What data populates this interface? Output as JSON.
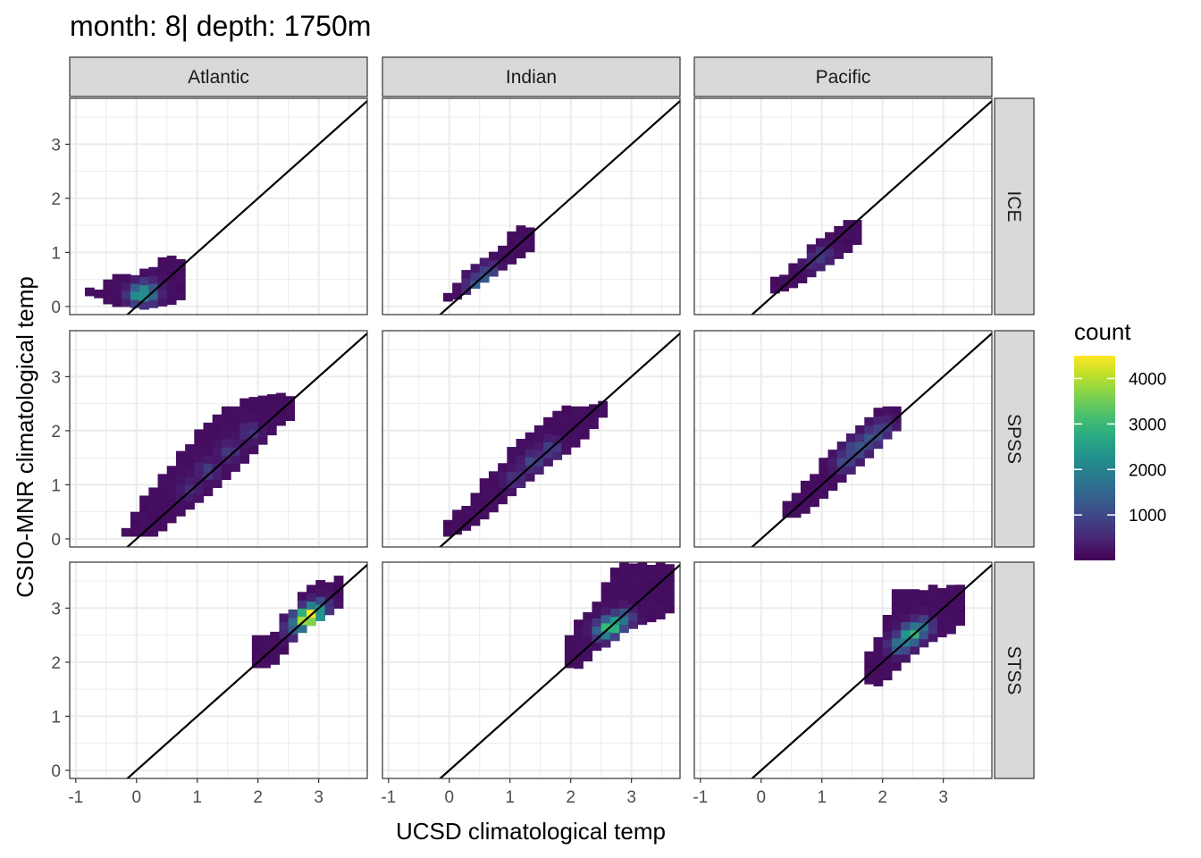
{
  "title": "month: 8| depth: 1750m",
  "chart_data": {
    "type": "heatmap",
    "title": "month: 8| depth: 1750m",
    "xlabel": "UCSD climatological temp",
    "ylabel": "CSIO-MNR climatological temp",
    "xlim": [
      -1.1,
      3.8
    ],
    "ylim": [
      -0.15,
      3.85
    ],
    "xticks": [
      "-1",
      "0",
      "1",
      "2",
      "3"
    ],
    "yticks": [
      "0",
      "1",
      "2",
      "3"
    ],
    "xtick_values": [
      -1,
      0,
      1,
      2,
      3
    ],
    "ytick_values": [
      0,
      1,
      2,
      3
    ],
    "columns": [
      "Atlantic",
      "Indian",
      "Pacific"
    ],
    "rows": [
      "ICE",
      "SPSS",
      "STSS"
    ],
    "reference_line": "y = x",
    "bin_width": 0.15,
    "legend": {
      "title": "count",
      "ticks": [
        "1000",
        "2000",
        "3000",
        "4000"
      ],
      "tick_values": [
        1000,
        2000,
        3000,
        4000
      ],
      "min": 1,
      "max": 4500,
      "colormap": "viridis",
      "position": "right"
    },
    "grid": true,
    "panels": [
      {
        "row": "ICE",
        "col": "Atlantic",
        "bands": [
          [
            -0.85,
            0.3,
            0.2,
            0.2
          ],
          [
            -0.65,
            0.4,
            0.15,
            0.3
          ],
          [
            -0.55,
            0.5,
            0.05,
            0.4
          ],
          [
            -0.4,
            0.5,
            0.0,
            0.55
          ],
          [
            -0.2,
            0.55,
            0.0,
            0.55
          ],
          [
            0.05,
            0.6,
            -0.05,
            0.55
          ],
          [
            0.3,
            0.7,
            0.0,
            0.8
          ],
          [
            0.55,
            0.8,
            0.05,
            0.8
          ],
          [
            0.75,
            0.8,
            0.2,
            0.8
          ]
        ],
        "peaks": [
          {
            "x": -0.05,
            "y": 0.15,
            "c": 2100
          },
          {
            "x": 0.15,
            "y": 0.15,
            "c": 1100
          },
          {
            "x": 0.1,
            "y": 0.3,
            "c": 600
          }
        ]
      },
      {
        "row": "ICE",
        "col": "Indian",
        "bands": [
          [
            -0.1,
            0.1,
            0.1,
            0.2
          ],
          [
            0.1,
            0.15,
            0.25,
            0.45
          ],
          [
            0.3,
            0.3,
            0.4,
            0.6
          ],
          [
            0.5,
            0.45,
            0.6,
            0.8
          ],
          [
            0.7,
            0.6,
            0.75,
            1.0
          ],
          [
            0.9,
            0.75,
            0.95,
            1.2
          ],
          [
            1.1,
            0.9,
            1.1,
            1.4
          ],
          [
            1.3,
            1.05,
            1.25,
            1.4
          ]
        ],
        "peaks": [
          {
            "x": 0.35,
            "y": 0.3,
            "c": 950
          },
          {
            "x": 0.5,
            "y": 0.45,
            "c": 700
          },
          {
            "x": 0.6,
            "y": 0.6,
            "c": 500
          }
        ]
      },
      {
        "row": "ICE",
        "col": "Pacific",
        "bands": [
          [
            0.15,
            0.25,
            0.3,
            0.45
          ],
          [
            0.35,
            0.3,
            0.5,
            0.6
          ],
          [
            0.55,
            0.4,
            0.7,
            0.8
          ],
          [
            0.75,
            0.55,
            0.9,
            1.0
          ],
          [
            0.95,
            0.7,
            1.1,
            1.2
          ],
          [
            1.15,
            0.85,
            1.25,
            1.4
          ],
          [
            1.35,
            1.0,
            1.4,
            1.55
          ],
          [
            1.5,
            1.15,
            1.5,
            1.55
          ]
        ],
        "peaks": [
          {
            "x": 0.95,
            "y": 0.9,
            "c": 450
          },
          {
            "x": 0.8,
            "y": 0.75,
            "c": 350
          }
        ]
      },
      {
        "row": "SPSS",
        "col": "Atlantic",
        "bands": [
          [
            -0.25,
            0.05,
            0.1,
            0.15
          ],
          [
            -0.05,
            0.05,
            0.3,
            0.55
          ],
          [
            0.25,
            0.05,
            0.6,
            1.0
          ],
          [
            0.5,
            0.3,
            0.9,
            1.3
          ],
          [
            0.8,
            0.55,
            1.2,
            1.7
          ],
          [
            1.1,
            0.8,
            1.5,
            2.1
          ],
          [
            1.4,
            1.1,
            1.8,
            2.3
          ],
          [
            1.7,
            1.4,
            2.0,
            2.45
          ],
          [
            2.0,
            1.75,
            2.25,
            2.55
          ],
          [
            2.3,
            2.1,
            2.4,
            2.6
          ],
          [
            2.55,
            2.25,
            2.5,
            2.55
          ]
        ],
        "peaks": [
          {
            "x": 1.1,
            "y": 1.2,
            "c": 600
          },
          {
            "x": 1.45,
            "y": 1.55,
            "c": 550
          },
          {
            "x": 1.8,
            "y": 1.9,
            "c": 500
          },
          {
            "x": 0.8,
            "y": 0.85,
            "c": 400
          }
        ]
      },
      {
        "row": "SPSS",
        "col": "Indian",
        "bands": [
          [
            -0.1,
            0.05,
            0.15,
            0.2
          ],
          [
            0.1,
            0.1,
            0.35,
            0.45
          ],
          [
            0.35,
            0.25,
            0.6,
            0.8
          ],
          [
            0.6,
            0.45,
            0.85,
            1.1
          ],
          [
            0.85,
            0.7,
            1.1,
            1.45
          ],
          [
            1.1,
            0.95,
            1.35,
            1.75
          ],
          [
            1.35,
            1.15,
            1.6,
            2.0
          ],
          [
            1.6,
            1.4,
            1.85,
            2.2
          ],
          [
            1.9,
            1.6,
            2.05,
            2.35
          ],
          [
            2.2,
            1.9,
            2.3,
            2.45
          ],
          [
            2.45,
            2.25,
            2.5,
            2.5
          ]
        ],
        "peaks": [
          {
            "x": 1.3,
            "y": 1.35,
            "c": 800
          },
          {
            "x": 1.6,
            "y": 1.6,
            "c": 700
          },
          {
            "x": 1.0,
            "y": 1.05,
            "c": 500
          }
        ]
      },
      {
        "row": "SPSS",
        "col": "Pacific",
        "bands": [
          [
            0.35,
            0.4,
            0.55,
            0.65
          ],
          [
            0.55,
            0.4,
            0.75,
            0.85
          ],
          [
            0.75,
            0.55,
            0.95,
            1.1
          ],
          [
            0.95,
            0.75,
            1.15,
            1.35
          ],
          [
            1.15,
            0.95,
            1.35,
            1.6
          ],
          [
            1.35,
            1.15,
            1.55,
            1.85
          ],
          [
            1.55,
            1.35,
            1.75,
            2.05
          ],
          [
            1.75,
            1.55,
            1.95,
            2.25
          ],
          [
            1.95,
            1.8,
            2.15,
            2.35
          ],
          [
            2.15,
            2.0,
            2.35,
            2.4
          ]
        ],
        "peaks": [
          {
            "x": 1.5,
            "y": 1.6,
            "c": 1100
          },
          {
            "x": 1.75,
            "y": 1.8,
            "c": 1000
          },
          {
            "x": 1.3,
            "y": 1.35,
            "c": 800
          },
          {
            "x": 1.95,
            "y": 2.0,
            "c": 600
          }
        ]
      },
      {
        "row": "STSS",
        "col": "Atlantic",
        "bands": [
          [
            1.9,
            1.9,
            1.9,
            2.45
          ],
          [
            2.15,
            1.9,
            2.25,
            2.45
          ],
          [
            2.35,
            2.15,
            2.55,
            2.85
          ],
          [
            2.55,
            2.45,
            2.7,
            3.0
          ],
          [
            2.75,
            2.65,
            3.0,
            3.3
          ],
          [
            3.0,
            2.8,
            3.3,
            3.45
          ],
          [
            3.25,
            3.0,
            3.3,
            3.45
          ]
        ],
        "peaks": [
          {
            "x": 2.8,
            "y": 2.8,
            "c": 4500
          },
          {
            "x": 2.65,
            "y": 2.7,
            "c": 2500
          },
          {
            "x": 2.95,
            "y": 2.95,
            "c": 1200
          },
          {
            "x": 2.5,
            "y": 2.55,
            "c": 800
          }
        ]
      },
      {
        "row": "STSS",
        "col": "Indian",
        "bands": [
          [
            1.9,
            2.0,
            1.9,
            2.4
          ],
          [
            2.1,
            1.85,
            2.1,
            2.75
          ],
          [
            2.3,
            2.2,
            2.35,
            3.0
          ],
          [
            2.55,
            2.3,
            2.65,
            3.5
          ],
          [
            2.8,
            2.55,
            2.9,
            3.75
          ],
          [
            3.1,
            2.7,
            3.2,
            3.75
          ],
          [
            3.4,
            2.8,
            3.5,
            3.75
          ],
          [
            3.6,
            2.95,
            3.6,
            3.75
          ]
        ],
        "peaks": [
          {
            "x": 2.6,
            "y": 2.6,
            "c": 2800
          },
          {
            "x": 2.45,
            "y": 2.5,
            "c": 1500
          },
          {
            "x": 2.8,
            "y": 2.75,
            "c": 1300
          }
        ]
      },
      {
        "row": "STSS",
        "col": "Pacific",
        "bands": [
          [
            1.7,
            1.6,
            1.75,
            2.1
          ],
          [
            1.9,
            1.55,
            2.0,
            2.45
          ],
          [
            2.1,
            1.8,
            2.2,
            3.25
          ],
          [
            2.3,
            2.0,
            2.45,
            3.3
          ],
          [
            2.55,
            2.25,
            2.7,
            3.3
          ],
          [
            2.85,
            2.45,
            2.95,
            3.3
          ],
          [
            3.1,
            2.55,
            3.25,
            3.35
          ],
          [
            3.25,
            2.75,
            3.25,
            3.35
          ]
        ],
        "peaks": [
          {
            "x": 2.4,
            "y": 2.45,
            "c": 2800
          },
          {
            "x": 2.2,
            "y": 2.25,
            "c": 1600
          },
          {
            "x": 2.6,
            "y": 2.6,
            "c": 1200
          }
        ]
      }
    ]
  }
}
